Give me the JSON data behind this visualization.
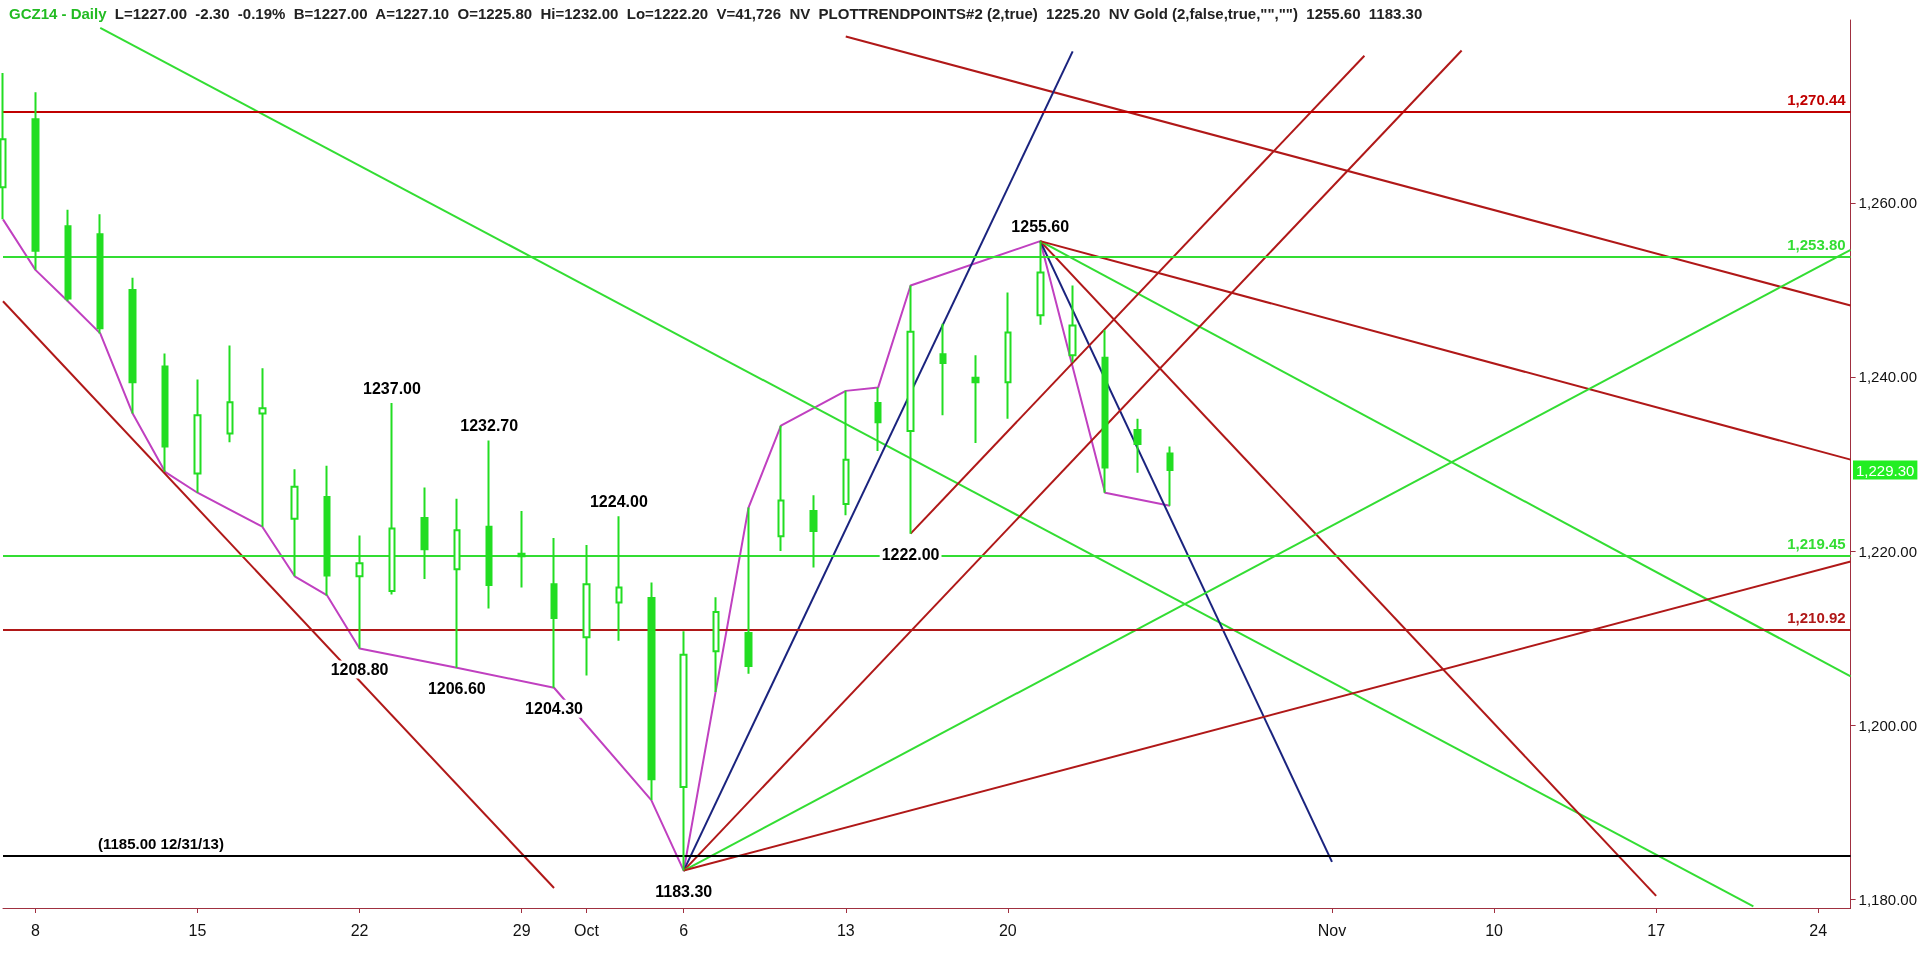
{
  "chart_data": {
    "type": "candlestick",
    "title": "GCZ14 - Daily",
    "subtitle": "L=1227.00  -2.30  -0.19%  B=1227.00  A=1227.10  O=1225.80  Hi=1232.00  Lo=1222.20  V=41,726  NV  PLOTTRENDPOINTS#2 (2,true)  1225.20  NV Gold (2,false,true,\"\",\"\")  1255.60  1183.30",
    "categories": [
      null,
      "8",
      null,
      null,
      null,
      null,
      "15",
      null,
      null,
      null,
      null,
      "22",
      null,
      null,
      null,
      null,
      "29",
      null,
      "Oct",
      null,
      null,
      "6",
      null,
      null,
      null,
      null,
      "13",
      null,
      null,
      null,
      null,
      "20",
      null,
      null,
      null,
      null,
      null,
      null,
      null,
      null,
      null,
      "Nov",
      null,
      null,
      null,
      null,
      "10",
      null,
      null,
      null,
      null,
      "17",
      null,
      null,
      null,
      null,
      "24",
      null
    ],
    "ylim": [
      1179,
      1281
    ],
    "yticks": [
      {
        "value": 1180,
        "label": "1,180.00"
      },
      {
        "value": 1200,
        "label": "1,200.00"
      },
      {
        "value": 1220,
        "label": "1,220.00"
      },
      {
        "value": 1240,
        "label": "1,240.00"
      },
      {
        "value": 1260,
        "label": "1,260.00"
      }
    ],
    "series": [
      {
        "color": "#22dd22",
        "ohlc": [
          [
            1261.8,
            1274.9,
            1258.1,
            1267.3
          ],
          [
            1269.6,
            1272.7,
            1252.3,
            1254.5
          ],
          [
            1257.3,
            1259.2,
            1248.7,
            1249.0
          ],
          [
            1256.4,
            1258.7,
            1245.0,
            1245.6
          ],
          [
            1250.0,
            1251.4,
            1235.8,
            1239.4
          ],
          [
            1241.2,
            1242.7,
            1229.1,
            1232.0
          ],
          [
            1228.9,
            1239.7,
            1226.7,
            1235.6
          ],
          [
            1233.5,
            1243.6,
            1232.5,
            1237.1
          ],
          [
            1235.8,
            1241.0,
            1222.8,
            1236.4
          ],
          [
            1223.7,
            1229.4,
            1217.1,
            1227.4
          ],
          [
            1226.2,
            1229.8,
            1214.9,
            1217.2
          ],
          [
            1217.1,
            1221.8,
            1208.8,
            1218.6
          ],
          [
            1215.4,
            1237.0,
            1215.0,
            1222.6
          ],
          [
            1223.8,
            1227.3,
            1216.8,
            1220.2
          ],
          [
            1217.9,
            1226.0,
            1206.6,
            1222.4
          ],
          [
            1222.8,
            1232.7,
            1213.4,
            1216.1
          ],
          [
            1219.7,
            1224.6,
            1215.8,
            1219.4
          ],
          [
            1216.2,
            1221.5,
            1204.3,
            1212.3
          ],
          [
            1210.1,
            1220.7,
            1205.7,
            1216.2
          ],
          [
            1214.1,
            1224.0,
            1209.7,
            1215.8
          ],
          [
            1214.6,
            1216.4,
            1191.4,
            1193.8
          ],
          [
            1192.9,
            1210.8,
            1183.3,
            1208.1
          ],
          [
            1208.5,
            1214.7,
            1203.8,
            1213.0
          ],
          [
            1210.6,
            1225.0,
            1205.9,
            1206.8
          ],
          [
            1221.7,
            1234.4,
            1220.0,
            1225.8
          ],
          [
            1224.6,
            1226.4,
            1218.1,
            1222.3
          ],
          [
            1225.4,
            1238.4,
            1224.1,
            1230.5
          ],
          [
            1237.0,
            1238.8,
            1231.5,
            1234.8
          ],
          [
            1233.8,
            1250.5,
            1222.0,
            1245.2
          ],
          [
            1242.6,
            1246.1,
            1235.6,
            1241.6
          ],
          [
            1239.9,
            1242.5,
            1232.4,
            1239.4
          ],
          [
            1239.4,
            1249.7,
            1235.2,
            1245.1
          ],
          [
            1247.1,
            1255.6,
            1246.0,
            1252.0
          ],
          [
            1242.5,
            1250.5,
            1241.7,
            1245.9
          ],
          [
            1242.2,
            1245.4,
            1226.7,
            1229.6
          ],
          [
            1233.9,
            1235.2,
            1229.0,
            1232.3
          ],
          [
            1231.2,
            1232.0,
            1225.2,
            1229.3
          ],
          null,
          null,
          null,
          null,
          null,
          null,
          null,
          null,
          null,
          null,
          null,
          null,
          null,
          null,
          null,
          null,
          null,
          null,
          null,
          null,
          null
        ]
      },
      {
        "type": "line",
        "color": "#c040c0",
        "values": [
          1258.1,
          1252.3,
          1248.7,
          1245.0,
          1235.8,
          1229.1,
          1226.7,
          null,
          1222.8,
          1217.1,
          1214.9,
          1208.8,
          null,
          null,
          1206.6,
          null,
          null,
          1204.3,
          null,
          null,
          1191.4,
          1183.3,
          null,
          1225.0,
          1234.4,
          null,
          1238.4,
          1238.8,
          1250.5,
          null,
          null,
          null,
          1255.6,
          null,
          1226.7,
          null,
          1225.2,
          null,
          null,
          null,
          null,
          null,
          null,
          null,
          null,
          null,
          null,
          null,
          null,
          null,
          null,
          null,
          null,
          null,
          null,
          null,
          null,
          null
        ]
      },
      {
        "type": "line",
        "color": "#33dd33",
        "values": [
          null,
          null,
          null,
          1280.1,
          null,
          null,
          null,
          null,
          null,
          null,
          null,
          null,
          null,
          null,
          null,
          null,
          null,
          null,
          null,
          null,
          null,
          null,
          null,
          null,
          null,
          null,
          null,
          null,
          null,
          null,
          null,
          null,
          null,
          null,
          null,
          null,
          null,
          null,
          null,
          null,
          null,
          null,
          null,
          null,
          null,
          null,
          null,
          null,
          null,
          null,
          null,
          null,
          null,
          null,
          1179.2,
          null,
          null,
          null
        ]
      },
      {
        "type": "line",
        "color": "#1a237e",
        "values": [
          null,
          null,
          null,
          null,
          null,
          null,
          null,
          null,
          null,
          null,
          null,
          null,
          null,
          null,
          null,
          null,
          null,
          null,
          null,
          null,
          null,
          null,
          null,
          null,
          null,
          null,
          null,
          null,
          null,
          null,
          null,
          null,
          1255.6,
          null,
          null,
          null,
          null,
          null,
          null,
          null,
          null,
          1184.3,
          null,
          null,
          null,
          null,
          null,
          null,
          null,
          null,
          null,
          null,
          null,
          null,
          null,
          null,
          null,
          null
        ]
      },
      {
        "type": "line",
        "color": "#b01818",
        "values": [
          null,
          null,
          null,
          null,
          null,
          null,
          null,
          null,
          null,
          null,
          null,
          null,
          null,
          null,
          null,
          null,
          null,
          null,
          null,
          null,
          null,
          null,
          null,
          null,
          null,
          null,
          null,
          null,
          null,
          null,
          null,
          null,
          1255.6,
          null,
          null,
          null,
          null,
          null,
          null,
          null,
          null,
          null,
          null,
          null,
          null,
          null,
          null,
          null,
          null,
          null,
          null,
          1180.4,
          null,
          null,
          null,
          null,
          null,
          null
        ]
      },
      {
        "type": "line",
        "color": "#33dd33",
        "values": [
          null,
          null,
          null,
          null,
          null,
          null,
          null,
          null,
          null,
          null,
          null,
          null,
          null,
          null,
          null,
          null,
          null,
          null,
          null,
          null,
          null,
          null,
          null,
          null,
          null,
          null,
          null,
          null,
          null,
          null,
          null,
          null,
          1255.6,
          null,
          null,
          null,
          null,
          null,
          null,
          null,
          null,
          null,
          null,
          null,
          null,
          null,
          null,
          null,
          null,
          null,
          null,
          null,
          null,
          null,
          null,
          null,
          null,
          1205.6
        ]
      },
      {
        "type": "line",
        "color": "#b01818",
        "values": [
          null,
          null,
          null,
          null,
          null,
          null,
          null,
          null,
          null,
          null,
          null,
          null,
          null,
          null,
          null,
          null,
          null,
          null,
          null,
          null,
          null,
          null,
          null,
          null,
          null,
          null,
          null,
          null,
          null,
          null,
          null,
          null,
          1255.6,
          null,
          null,
          null,
          null,
          null,
          null,
          null,
          null,
          null,
          null,
          null,
          null,
          null,
          null,
          null,
          null,
          null,
          null,
          null,
          null,
          null,
          null,
          null,
          null,
          1230.5
        ]
      },
      {
        "type": "line",
        "color": "#b01818",
        "values": [
          null,
          null,
          null,
          null,
          null,
          null,
          null,
          null,
          null,
          null,
          null,
          null,
          null,
          null,
          null,
          null,
          null,
          null,
          null,
          null,
          null,
          null,
          null,
          null,
          null,
          null,
          1279.1,
          null,
          null,
          null,
          null,
          null,
          null,
          null,
          null,
          null,
          null,
          null,
          null,
          null,
          null,
          null,
          null,
          null,
          null,
          null,
          null,
          null,
          null,
          null,
          null,
          null,
          null,
          null,
          null,
          null,
          null,
          1248.2
        ]
      },
      {
        "type": "line",
        "color": "#1a237e",
        "values": [
          null,
          null,
          null,
          null,
          null,
          null,
          null,
          null,
          null,
          null,
          null,
          null,
          null,
          null,
          null,
          null,
          null,
          null,
          null,
          null,
          null,
          1183.3,
          null,
          null,
          null,
          null,
          null,
          null,
          null,
          null,
          null,
          null,
          null,
          1277.4,
          null,
          null,
          null,
          null,
          null,
          null,
          null,
          null,
          null,
          null,
          null,
          null,
          null,
          null,
          null,
          null,
          null,
          null,
          null,
          null,
          null,
          null,
          null,
          null
        ]
      },
      {
        "type": "line",
        "color": "#b01818",
        "values": [
          null,
          null,
          null,
          null,
          null,
          null,
          null,
          null,
          null,
          null,
          null,
          null,
          null,
          null,
          null,
          null,
          null,
          null,
          null,
          null,
          null,
          1183.3,
          null,
          null,
          null,
          null,
          null,
          null,
          null,
          null,
          null,
          null,
          null,
          null,
          null,
          null,
          null,
          null,
          null,
          null,
          null,
          null,
          null,
          null,
          null,
          1277.5,
          null,
          null,
          null,
          null,
          null,
          null,
          null,
          null,
          null,
          null,
          null,
          null
        ]
      },
      {
        "type": "line",
        "color": "#b01818",
        "values": [
          null,
          null,
          null,
          null,
          null,
          null,
          null,
          null,
          null,
          null,
          null,
          null,
          null,
          null,
          null,
          null,
          null,
          null,
          null,
          null,
          null,
          null,
          null,
          null,
          null,
          null,
          null,
          null,
          1222.0,
          null,
          null,
          null,
          null,
          null,
          null,
          null,
          null,
          null,
          null,
          null,
          null,
          null,
          1276.9,
          null,
          null,
          null,
          null,
          null,
          null,
          null,
          null,
          null,
          null,
          null,
          null,
          null,
          null,
          null
        ]
      },
      {
        "type": "line",
        "color": "#33dd33",
        "values": [
          null,
          null,
          null,
          null,
          null,
          null,
          null,
          null,
          null,
          null,
          null,
          null,
          null,
          null,
          null,
          null,
          null,
          null,
          null,
          null,
          null,
          1183.3,
          null,
          null,
          null,
          null,
          null,
          null,
          null,
          null,
          null,
          null,
          null,
          null,
          null,
          null,
          null,
          null,
          null,
          null,
          null,
          null,
          null,
          null,
          null,
          null,
          null,
          null,
          null,
          null,
          null,
          null,
          null,
          null,
          null,
          null,
          null,
          1254.6
        ]
      },
      {
        "type": "line",
        "color": "#b01818",
        "values": [
          null,
          null,
          null,
          null,
          null,
          null,
          null,
          null,
          null,
          null,
          null,
          null,
          null,
          null,
          null,
          null,
          null,
          null,
          null,
          null,
          null,
          1183.3,
          null,
          null,
          null,
          null,
          null,
          null,
          null,
          null,
          null,
          null,
          null,
          null,
          null,
          null,
          null,
          null,
          null,
          null,
          null,
          null,
          null,
          null,
          null,
          null,
          null,
          null,
          null,
          null,
          null,
          null,
          null,
          null,
          null,
          null,
          null,
          1218.8
        ]
      },
      {
        "type": "line",
        "color": "#b01818",
        "values": [
          1248.7,
          null,
          null,
          null,
          null,
          null,
          null,
          null,
          null,
          null,
          null,
          null,
          null,
          null,
          null,
          null,
          null,
          1181.3,
          null,
          null,
          null,
          null,
          null,
          null,
          null,
          null,
          null,
          null,
          null,
          null,
          null,
          null,
          null,
          null,
          null,
          null,
          null,
          null,
          null,
          null,
          null,
          null,
          null,
          null,
          null,
          null,
          null,
          null,
          null,
          null,
          null,
          null,
          null,
          null,
          null,
          null,
          null,
          null
        ]
      }
    ],
    "ref_lines": [
      {
        "axis": "y",
        "value": 1270.44,
        "label": "1,270.44",
        "color": "#c00000"
      },
      {
        "axis": "y",
        "value": 1253.8,
        "label": "1,253.80",
        "color": "#33dd33"
      },
      {
        "axis": "y",
        "value": 1219.45,
        "label": "1,219.45",
        "color": "#33dd33"
      },
      {
        "axis": "y",
        "value": 1210.92,
        "label": "1,210.92",
        "color": "#b01818"
      },
      {
        "axis": "y",
        "value": 1185,
        "label": "(1185.00 12/31/13)",
        "color": "#000000"
      }
    ],
    "annotations": [
      {
        "text": "1237.00",
        "y": 1237.0
      },
      {
        "text": "1232.70",
        "y": 1232.7
      },
      {
        "text": "1224.00",
        "y": 1224.0
      },
      {
        "text": "1255.60",
        "y": 1255.6
      },
      {
        "text": "1222.00",
        "y": 1222.0
      },
      {
        "text": "1208.80",
        "y": 1208.8
      },
      {
        "text": "1206.60",
        "y": 1206.6
      },
      {
        "text": "1204.30",
        "y": 1204.3
      },
      {
        "text": "1183.30",
        "x": "6",
        "y": 1183.3
      },
      "1,229.30"
    ],
    "grid": false,
    "marker": "none"
  }
}
